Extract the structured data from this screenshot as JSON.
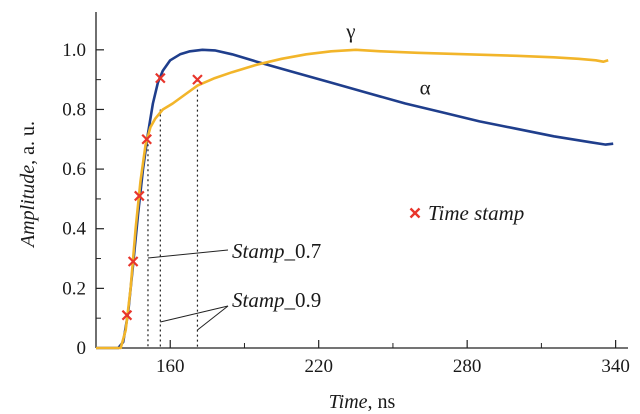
{
  "chart_data": {
    "type": "line",
    "xlabel": {
      "italic": "Time",
      "rest": ", ns"
    },
    "ylabel": {
      "italic": "Amplitude",
      "rest": ", a. u."
    },
    "xlim": [
      130,
      345
    ],
    "ylim": [
      0,
      1.1
    ],
    "x_ticks": [
      160,
      220,
      280,
      340
    ],
    "x_minor_ticks": [
      130,
      190,
      250,
      310
    ],
    "y_ticks": [
      0,
      0.2,
      0.4,
      0.6,
      0.8,
      1.0
    ],
    "y_minor_ticks": [
      0.1,
      0.3,
      0.5,
      0.7,
      0.9
    ],
    "y_tick_labels": [
      "0",
      "0.2",
      "0.4",
      "0.6",
      "0.8",
      "1.0"
    ],
    "x_tick_labels": [
      "160",
      "220",
      "280",
      "340"
    ],
    "grid": false,
    "series": [
      {
        "name": "α",
        "color": "#1f3e8c",
        "points": [
          [
            130,
            0
          ],
          [
            139,
            0
          ],
          [
            141,
            0.02
          ],
          [
            143,
            0.12
          ],
          [
            145,
            0.28
          ],
          [
            147,
            0.45
          ],
          [
            149,
            0.6
          ],
          [
            151,
            0.72
          ],
          [
            153,
            0.82
          ],
          [
            155,
            0.89
          ],
          [
            157,
            0.93
          ],
          [
            160,
            0.965
          ],
          [
            164,
            0.985
          ],
          [
            168,
            0.995
          ],
          [
            173,
            1.0
          ],
          [
            178,
            0.998
          ],
          [
            185,
            0.985
          ],
          [
            195,
            0.96
          ],
          [
            210,
            0.925
          ],
          [
            225,
            0.89
          ],
          [
            240,
            0.855
          ],
          [
            255,
            0.82
          ],
          [
            270,
            0.79
          ],
          [
            285,
            0.76
          ],
          [
            300,
            0.735
          ],
          [
            315,
            0.71
          ],
          [
            330,
            0.69
          ],
          [
            336,
            0.682
          ],
          [
            339,
            0.685
          ]
        ]
      },
      {
        "name": "γ",
        "color": "#f2b52a",
        "points": [
          [
            130,
            0
          ],
          [
            140,
            0
          ],
          [
            142,
            0.06
          ],
          [
            144,
            0.2
          ],
          [
            146,
            0.4
          ],
          [
            148,
            0.56
          ],
          [
            150,
            0.68
          ],
          [
            152,
            0.74
          ],
          [
            154,
            0.77
          ],
          [
            157,
            0.8
          ],
          [
            161,
            0.82
          ],
          [
            166,
            0.85
          ],
          [
            171,
            0.88
          ],
          [
            178,
            0.905
          ],
          [
            185,
            0.925
          ],
          [
            195,
            0.95
          ],
          [
            205,
            0.97
          ],
          [
            215,
            0.985
          ],
          [
            225,
            0.995
          ],
          [
            235,
            1.0
          ],
          [
            245,
            0.995
          ],
          [
            260,
            0.99
          ],
          [
            280,
            0.985
          ],
          [
            300,
            0.98
          ],
          [
            315,
            0.975
          ],
          [
            325,
            0.97
          ],
          [
            332,
            0.965
          ],
          [
            335,
            0.96
          ],
          [
            337,
            0.965
          ]
        ]
      }
    ],
    "series_labels": [
      {
        "series": "γ",
        "text": "γ",
        "x": 233,
        "y": 1.04
      },
      {
        "series": "α",
        "text": "α",
        "x": 263,
        "y": 0.85
      }
    ],
    "time_stamps": [
      {
        "x": 142.5,
        "y": 0.11
      },
      {
        "x": 145,
        "y": 0.29
      },
      {
        "x": 147.5,
        "y": 0.51
      },
      {
        "x": 150.5,
        "y": 0.7
      },
      {
        "x": 156,
        "y": 0.905
      },
      {
        "x": 171,
        "y": 0.9
      }
    ],
    "stamp_lines": [
      {
        "x": 151,
        "y_top": 0.7
      },
      {
        "x": 156,
        "y_top": 0.8
      },
      {
        "x": 171,
        "y_top": 0.9
      }
    ],
    "legend": {
      "label": "Time stamp",
      "marker": "×",
      "marker_color": "#e8352b",
      "position": "right-middle"
    },
    "annotations": [
      {
        "text_italic": "Stamp",
        "text_rest": "_0.7",
        "targets": [
          151
        ]
      },
      {
        "text_italic": "Stamp",
        "text_rest": "_0.9",
        "targets": [
          156,
          171
        ]
      }
    ]
  }
}
